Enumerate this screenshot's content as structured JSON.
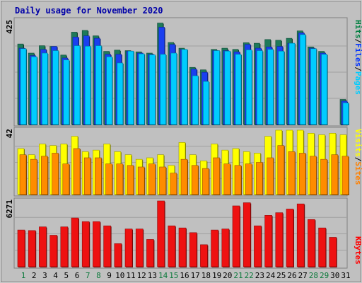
{
  "chart_data": [
    {
      "type": "bar",
      "title": "Daily usage for November 2020",
      "panel": "hits-files-pages",
      "ymax_label": "425",
      "ymax": 425,
      "right_label": [
        {
          "text": "Pages",
          "color": "#00ccff"
        },
        {
          "text": "Files",
          "color": "#0033ff"
        },
        {
          "text": "Hits",
          "color": "#008040"
        }
      ],
      "categories": [
        "1",
        "2",
        "3",
        "4",
        "5",
        "6",
        "7",
        "8",
        "9",
        "10",
        "11",
        "12",
        "13",
        "14",
        "15",
        "16",
        "17",
        "18",
        "19",
        "20",
        "21",
        "22",
        "23",
        "24",
        "25",
        "26",
        "27",
        "28",
        "29",
        "30",
        "31"
      ],
      "weekend_days": [
        "1",
        "7",
        "8",
        "14",
        "15",
        "21",
        "22",
        "28",
        "29"
      ],
      "series": [
        {
          "name": "Hits",
          "color": "#1e7a5a",
          "values": [
            327,
            290,
            320,
            317,
            282,
            375,
            382,
            360,
            297,
            302,
            300,
            295,
            290,
            412,
            333,
            310,
            232,
            222,
            305,
            310,
            305,
            332,
            330,
            345,
            342,
            350,
            380,
            315,
            297,
            0,
            102
          ]
        },
        {
          "name": "Files",
          "color": "#1a3ff0",
          "values": [
            310,
            280,
            305,
            317,
            270,
            355,
            360,
            350,
            285,
            285,
            298,
            290,
            285,
            395,
            325,
            305,
            225,
            212,
            300,
            300,
            295,
            325,
            310,
            315,
            317,
            330,
            372,
            310,
            290,
            0,
            95
          ]
        },
        {
          "name": "Pages",
          "color": "#00ccff",
          "values": [
            308,
            275,
            290,
            300,
            262,
            320,
            318,
            320,
            275,
            250,
            298,
            287,
            283,
            285,
            290,
            305,
            198,
            175,
            300,
            298,
            285,
            303,
            300,
            305,
            298,
            330,
            365,
            308,
            285,
            0,
            88
          ]
        }
      ]
    },
    {
      "type": "bar",
      "panel": "visits-sites",
      "ymax_label": "42",
      "ymax": 42,
      "right_label": [
        {
          "text": "Sites",
          "color": "#ff8000"
        },
        {
          "text": "Visits",
          "color": "#ffff00"
        }
      ],
      "series": [
        {
          "name": "Visits",
          "color": "#ffff00",
          "values": [
            30,
            26,
            33,
            32,
            33,
            38,
            28,
            29,
            33,
            28,
            26,
            23,
            24,
            26,
            19,
            34,
            26,
            22,
            33,
            29,
            30,
            28,
            27,
            38,
            42,
            42,
            42,
            40,
            39,
            40,
            39
          ]
        },
        {
          "name": "Sites",
          "color": "#ff8c00",
          "values": [
            26,
            23,
            25,
            27,
            20,
            30,
            24,
            24,
            20,
            20,
            19,
            18,
            20,
            18,
            14,
            23,
            19,
            17,
            24,
            20,
            19,
            20,
            21,
            24,
            32,
            28,
            27,
            25,
            23,
            26,
            25
          ]
        }
      ]
    },
    {
      "type": "bar",
      "panel": "kbytes",
      "ymax_label": "6271",
      "ymax": 6271,
      "right_label": [
        {
          "text": "KBytes",
          "color": "#ff0000"
        }
      ],
      "series": [
        {
          "name": "KBytes",
          "color": "#ee1111",
          "values": [
            3500,
            3450,
            3800,
            3000,
            3800,
            4650,
            4300,
            4300,
            3900,
            2200,
            3600,
            3600,
            2600,
            6271,
            3900,
            3700,
            3250,
            2100,
            3500,
            3600,
            5800,
            6100,
            3900,
            4900,
            5150,
            5500,
            5990,
            4500,
            3700,
            2800,
            0
          ]
        }
      ]
    }
  ]
}
